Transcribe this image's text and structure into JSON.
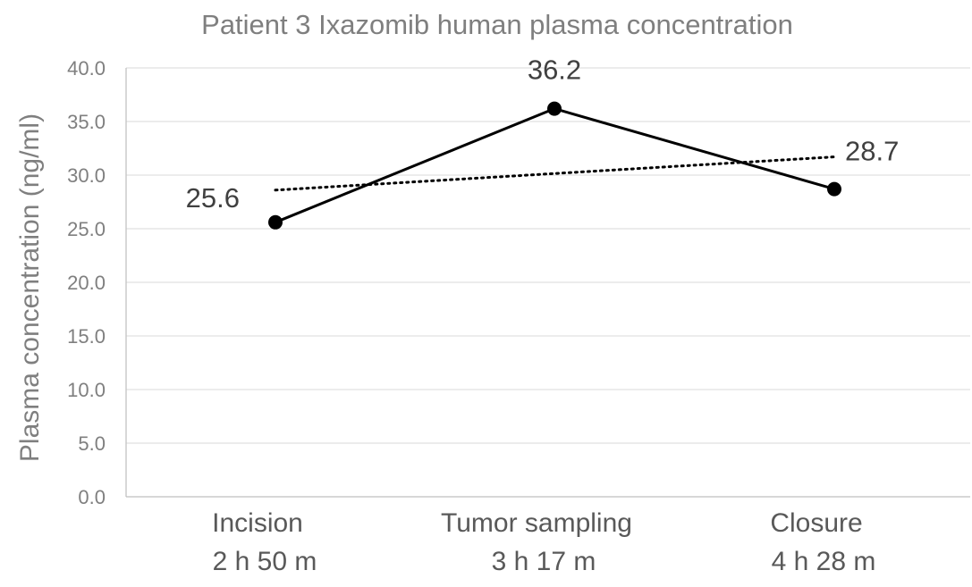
{
  "chart_data": {
    "type": "line",
    "title": "Patient 3 Ixazomib human plasma concentration",
    "xlabel": "",
    "ylabel": "Plasma concentration (ng/ml)",
    "ylim": [
      0,
      40
    ],
    "yticks": [
      "0.0",
      "5.0",
      "10.0",
      "15.0",
      "20.0",
      "25.0",
      "30.0",
      "35.0",
      "40.0"
    ],
    "categories": [
      {
        "line1": "Incision",
        "line2": "2 h 50 m"
      },
      {
        "line1": "Tumor sampling",
        "line2": "3 h 17 m"
      },
      {
        "line1": "Closure",
        "line2": "4 h 28 m"
      }
    ],
    "series": [
      {
        "values": [
          25.6,
          36.2,
          28.7
        ],
        "labels": [
          "25.6",
          "36.2",
          "28.7"
        ],
        "style": "solid",
        "markers": true,
        "color": "#000000"
      }
    ],
    "trendline": {
      "style": "dotted",
      "start": 28.6,
      "end": 31.7,
      "color": "#000000"
    },
    "grid": true,
    "legend": "none"
  }
}
